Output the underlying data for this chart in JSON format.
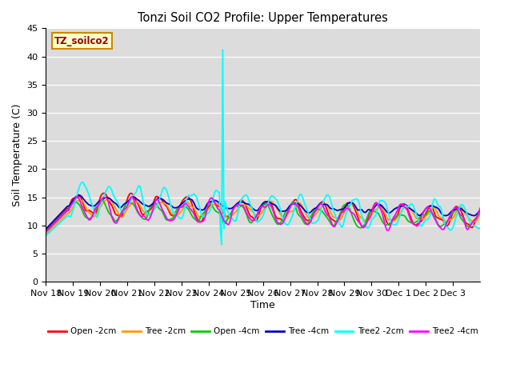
{
  "title": "Tonzi Soil CO2 Profile: Upper Temperatures",
  "ylabel": "Soil Temperature (C)",
  "xlabel": "Time",
  "watermark": "TZ_soilco2",
  "ylim": [
    0,
    45
  ],
  "yticks": [
    0,
    5,
    10,
    15,
    20,
    25,
    30,
    35,
    40,
    45
  ],
  "bg_color": "#dcdcdc",
  "series": [
    {
      "label": "Open -2cm",
      "color": "#ff0000"
    },
    {
      "label": "Tree -2cm",
      "color": "#ff9900"
    },
    {
      "label": "Open -4cm",
      "color": "#00cc00"
    },
    {
      "label": "Tree -4cm",
      "color": "#0000cc"
    },
    {
      "label": "Tree2 -2cm",
      "color": "#00ffff"
    },
    {
      "label": "Tree2 -4cm",
      "color": "#ff00ff"
    }
  ],
  "xtick_labels": [
    "Nov 18",
    "Nov 19",
    "Nov 20",
    "Nov 21",
    "Nov 22",
    "Nov 23",
    "Nov 24",
    "Nov 25",
    "Nov 26",
    "Nov 27",
    "Nov 28",
    "Nov 29",
    "Nov 30",
    "Dec 1",
    "Dec 2",
    "Dec 3"
  ],
  "n_points": 384,
  "spike_day": 6.5,
  "spike_high": 41.2,
  "spike_low": 6.6,
  "figsize": [
    6.4,
    4.8
  ],
  "dpi": 100
}
